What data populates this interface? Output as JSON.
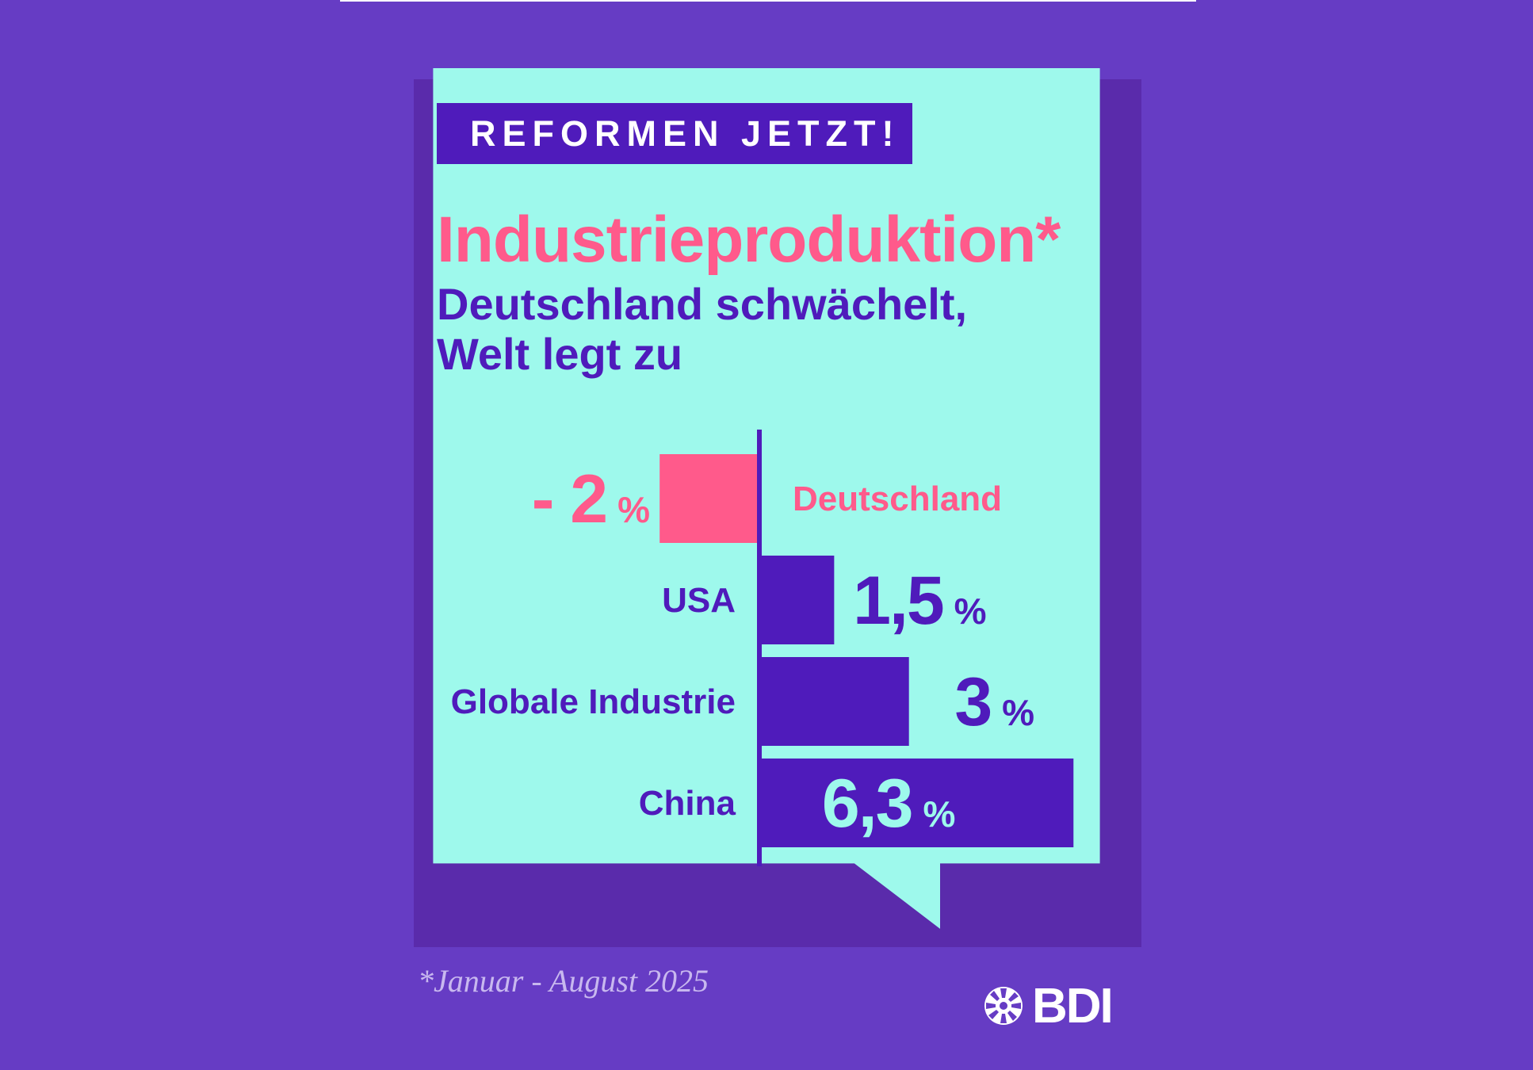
{
  "header": {
    "kicker": "REFORMEN JETZT!",
    "title": "Industrieproduktion*",
    "subtitle_line1": "Deutschland schwächelt,",
    "subtitle_line2": "Welt legt zu"
  },
  "footnote": "*Januar - August 2025",
  "logo": {
    "text": "BDI",
    "icon": "bdi-emblem-icon"
  },
  "colors": {
    "background": "#663cc4",
    "card": "#9ef9ec",
    "primary": "#4f1bbb",
    "accent": "#ff5a8b",
    "value_on_bar": "#9ef9ec"
  },
  "chart_data": {
    "type": "bar",
    "orientation": "horizontal",
    "title": "Industrieproduktion*",
    "categories": [
      "Deutschland",
      "USA",
      "Globale Industrie",
      "China"
    ],
    "values": [
      -2,
      1.5,
      3,
      6.3
    ],
    "value_labels": [
      "- 2",
      "1,5",
      "3",
      "6,3"
    ],
    "unit": "%",
    "grid": false,
    "legend": "none"
  }
}
